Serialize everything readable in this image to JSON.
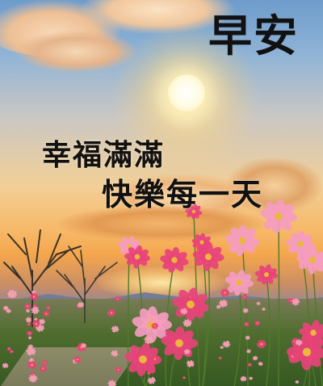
{
  "greeting": "早安",
  "blessing": {
    "line1": "幸福滿滿",
    "line2": "快樂每一天"
  },
  "colors": {
    "text": "#111111",
    "flower_pink": "#e8437a",
    "flower_light": "#f59cc0"
  }
}
